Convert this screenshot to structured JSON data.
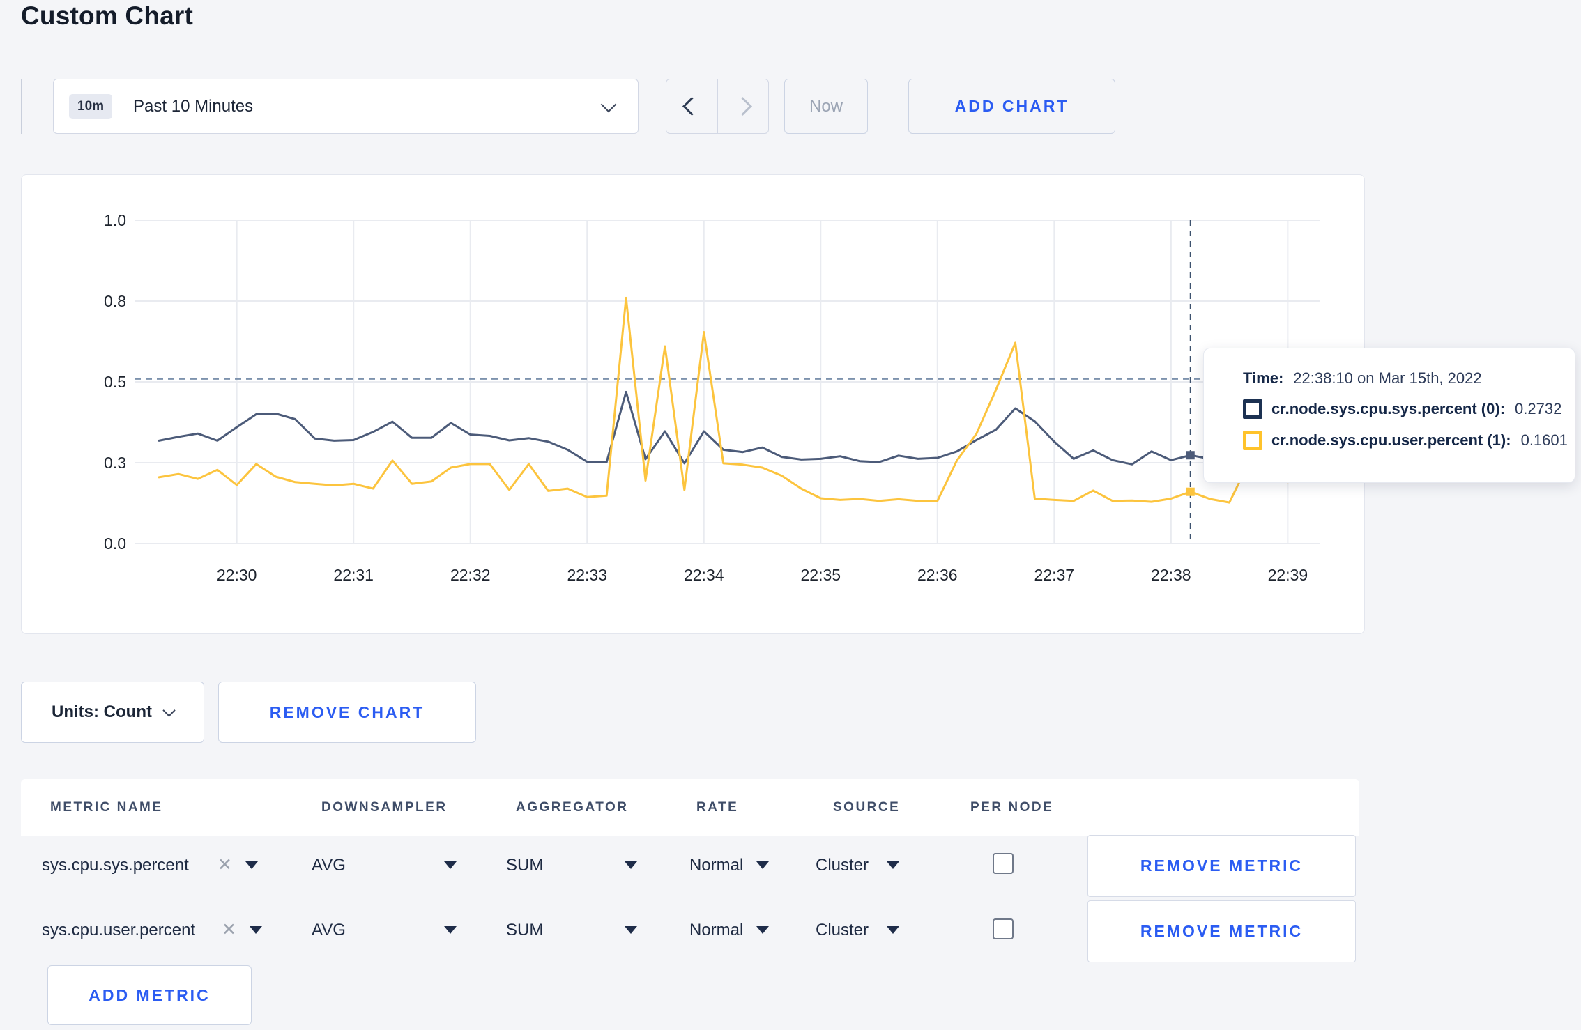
{
  "page": {
    "title": "Custom Chart"
  },
  "toolbar": {
    "time_range": {
      "badge": "10m",
      "label": "Past 10 Minutes"
    },
    "now_label": "Now",
    "add_chart_label": "ADD CHART"
  },
  "chart_data": {
    "type": "line",
    "x_start": "22:29:20",
    "x_interval_seconds": 10,
    "x_tick_labels": [
      "22:30",
      "22:31",
      "22:32",
      "22:33",
      "22:34",
      "22:35",
      "22:36",
      "22:37",
      "22:38",
      "22:39"
    ],
    "y_ticks": [
      {
        "value": 0.0,
        "label": "0.0"
      },
      {
        "value": 0.25,
        "label": "0.3"
      },
      {
        "value": 0.5,
        "label": "0.5"
      },
      {
        "value": 0.75,
        "label": "0.8"
      },
      {
        "value": 1.0,
        "label": "1.0"
      }
    ],
    "ylim": [
      0,
      1
    ],
    "grid": true,
    "legend_position": "none",
    "threshold_dashed_line_y": 0.509,
    "series": [
      {
        "name": "cr.node.sys.cpu.sys.percent",
        "color": "#4c5b79",
        "values": [
          0.318,
          0.33,
          0.34,
          0.318,
          0.36,
          0.4,
          0.402,
          0.385,
          0.325,
          0.318,
          0.32,
          0.345,
          0.377,
          0.327,
          0.327,
          0.373,
          0.337,
          0.333,
          0.319,
          0.326,
          0.315,
          0.29,
          0.253,
          0.252,
          0.469,
          0.261,
          0.347,
          0.248,
          0.347,
          0.29,
          0.283,
          0.297,
          0.268,
          0.26,
          0.262,
          0.27,
          0.255,
          0.252,
          0.272,
          0.262,
          0.265,
          0.285,
          0.32,
          0.352,
          0.418,
          0.378,
          0.315,
          0.262,
          0.288,
          0.258,
          0.245,
          0.285,
          0.258,
          0.2732,
          0.262,
          0.256,
          0.258,
          0.255,
          0.257
        ]
      },
      {
        "name": "cr.node.sys.cpu.user.percent",
        "color": "#fcc43e",
        "values": [
          0.205,
          0.215,
          0.2,
          0.228,
          0.181,
          0.246,
          0.207,
          0.19,
          0.185,
          0.18,
          0.185,
          0.17,
          0.257,
          0.185,
          0.192,
          0.235,
          0.246,
          0.246,
          0.166,
          0.246,
          0.163,
          0.17,
          0.144,
          0.148,
          0.76,
          0.195,
          0.61,
          0.166,
          0.654,
          0.248,
          0.244,
          0.235,
          0.21,
          0.17,
          0.14,
          0.135,
          0.138,
          0.132,
          0.137,
          0.132,
          0.132,
          0.257,
          0.339,
          0.475,
          0.621,
          0.139,
          0.135,
          0.132,
          0.164,
          0.132,
          0.133,
          0.129,
          0.139,
          0.1601,
          0.138,
          0.127,
          0.25,
          0.29,
          0.19
        ]
      }
    ],
    "hover": {
      "index": 53,
      "time": "22:38:10"
    }
  },
  "tooltip": {
    "time_label": "Time:",
    "time_value": "22:38:10 on Mar 15th, 2022",
    "rows": [
      {
        "name": "cr.node.sys.cpu.sys.percent (0):",
        "value": "0.2732",
        "color": "#1c3152"
      },
      {
        "name": "cr.node.sys.cpu.user.percent (1):",
        "value": "0.1601",
        "color": "#ffc32b"
      }
    ]
  },
  "chart_footer": {
    "units_label": "Units: Count",
    "remove_chart_label": "REMOVE CHART"
  },
  "metrics_table": {
    "columns": [
      "METRIC NAME",
      "DOWNSAMPLER",
      "AGGREGATOR",
      "RATE",
      "SOURCE",
      "PER NODE"
    ],
    "remove_metric_label": "REMOVE METRIC",
    "add_metric_label": "ADD METRIC",
    "rows": [
      {
        "metric_name": "sys.cpu.sys.percent",
        "downsampler": "AVG",
        "aggregator": "SUM",
        "rate": "Normal",
        "source": "Cluster",
        "per_node_checked": false
      },
      {
        "metric_name": "sys.cpu.user.percent",
        "downsampler": "AVG",
        "aggregator": "SUM",
        "rate": "Normal",
        "source": "Cluster",
        "per_node_checked": false
      }
    ]
  },
  "colors": {
    "accent_blue": "#2b5cf2",
    "page_bg": "#f4f5f8",
    "grid": "#e9ebf0"
  }
}
